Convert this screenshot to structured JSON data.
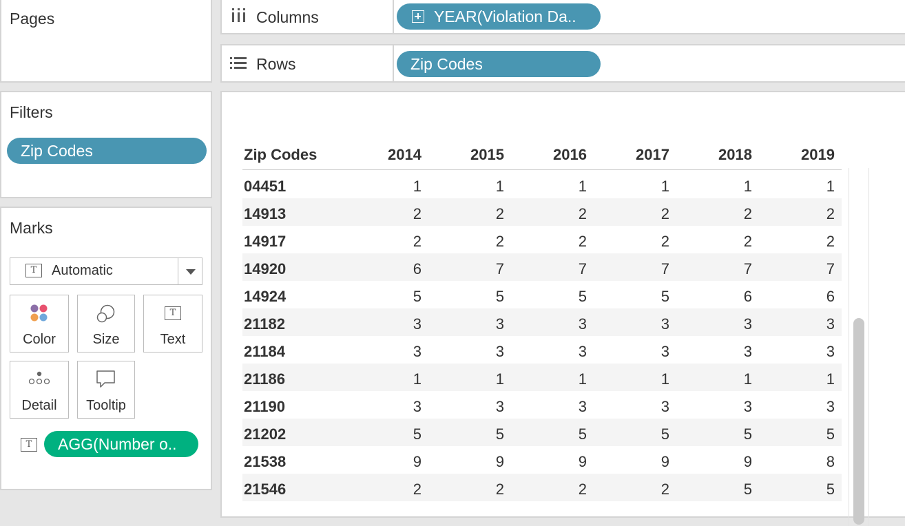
{
  "pages": {
    "title": "Pages"
  },
  "filters": {
    "title": "Filters",
    "pill": "Zip Codes"
  },
  "marks": {
    "title": "Marks",
    "mark_type": "Automatic",
    "buttons": {
      "color": "Color",
      "size": "Size",
      "text": "Text",
      "detail": "Detail",
      "tooltip": "Tooltip"
    },
    "text_pill": "AGG(Number o.."
  },
  "shelves": {
    "columns_label": "Columns",
    "columns_pill": "YEAR(Violation Da..",
    "rows_label": "Rows",
    "rows_pill": "Zip Codes"
  },
  "table": {
    "headers": [
      "Zip Codes",
      "2014",
      "2015",
      "2016",
      "2017",
      "2018",
      "2019"
    ],
    "rows": [
      {
        "zip": "04451",
        "values": [
          "1",
          "1",
          "1",
          "1",
          "1",
          "1"
        ]
      },
      {
        "zip": "14913",
        "values": [
          "2",
          "2",
          "2",
          "2",
          "2",
          "2"
        ]
      },
      {
        "zip": "14917",
        "values": [
          "2",
          "2",
          "2",
          "2",
          "2",
          "2"
        ]
      },
      {
        "zip": "14920",
        "values": [
          "6",
          "7",
          "7",
          "7",
          "7",
          "7"
        ]
      },
      {
        "zip": "14924",
        "values": [
          "5",
          "5",
          "5",
          "5",
          "6",
          "6"
        ]
      },
      {
        "zip": "21182",
        "values": [
          "3",
          "3",
          "3",
          "3",
          "3",
          "3"
        ]
      },
      {
        "zip": "21184",
        "values": [
          "3",
          "3",
          "3",
          "3",
          "3",
          "3"
        ]
      },
      {
        "zip": "21186",
        "values": [
          "1",
          "1",
          "1",
          "1",
          "1",
          "1"
        ]
      },
      {
        "zip": "21190",
        "values": [
          "3",
          "3",
          "3",
          "3",
          "3",
          "3"
        ]
      },
      {
        "zip": "21202",
        "values": [
          "5",
          "5",
          "5",
          "5",
          "5",
          "5"
        ]
      },
      {
        "zip": "21538",
        "values": [
          "9",
          "9",
          "9",
          "9",
          "9",
          "8"
        ]
      },
      {
        "zip": "21546",
        "values": [
          "2",
          "2",
          "2",
          "2",
          "5",
          "5"
        ]
      }
    ]
  },
  "colors": {
    "pill_blue": "#4996b2",
    "pill_green": "#00b180",
    "color_dots": [
      "#8c6fa8",
      "#e8526f",
      "#f0a050",
      "#6fa8dc"
    ]
  }
}
